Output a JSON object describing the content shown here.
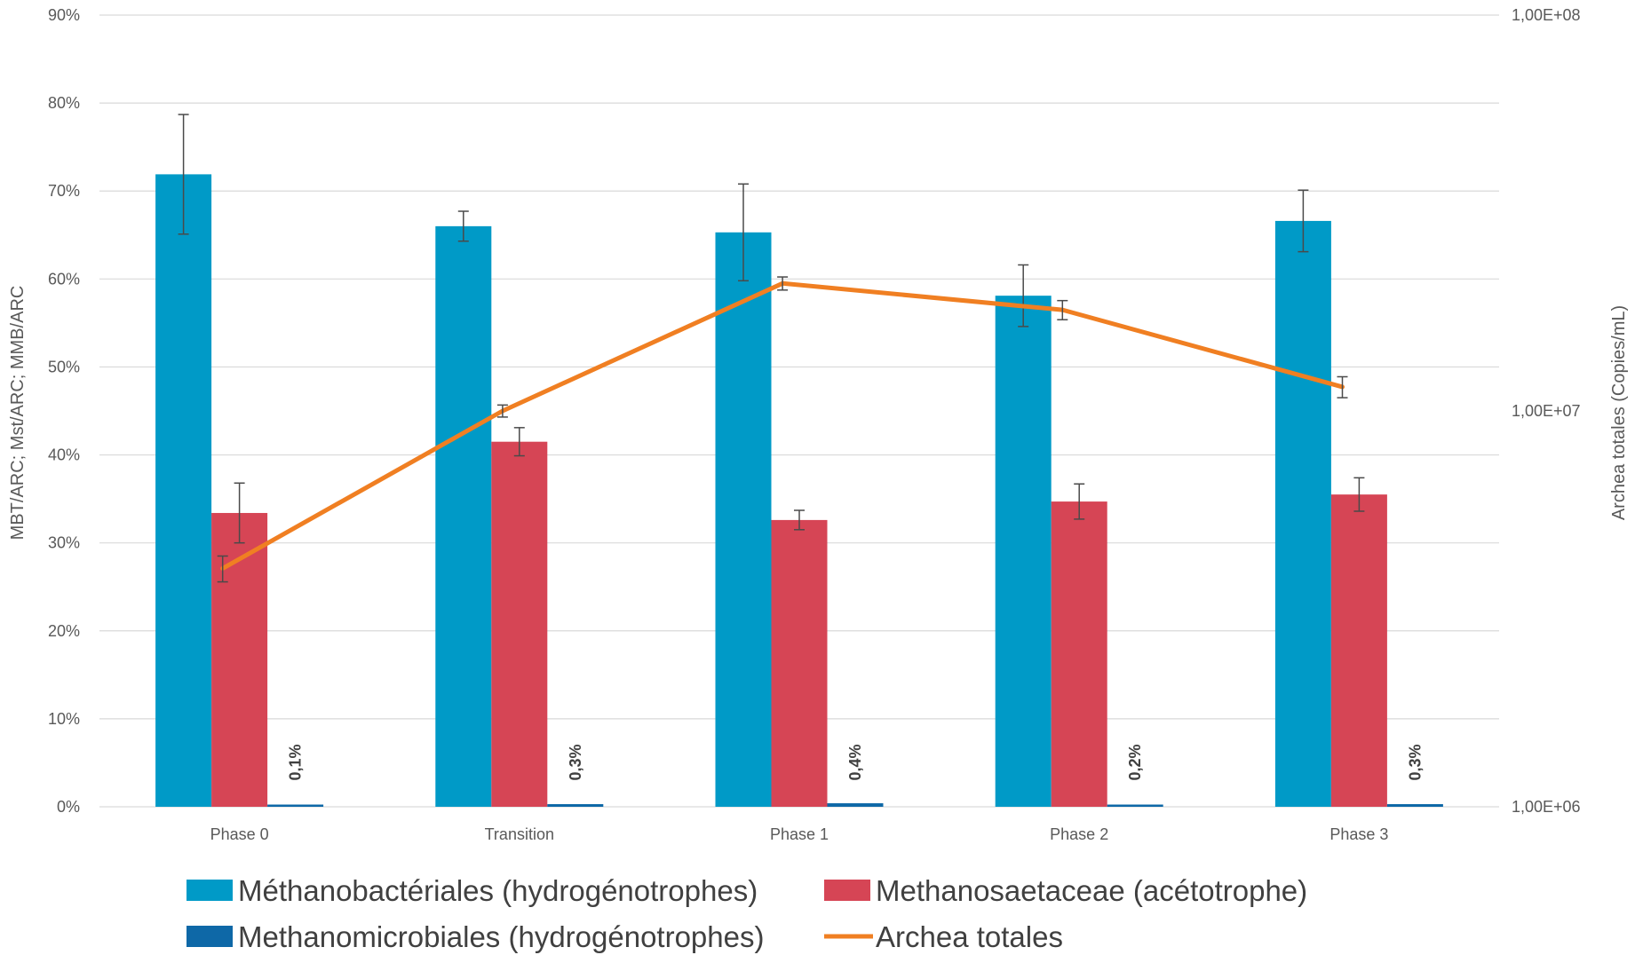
{
  "chart_data": {
    "type": "bar",
    "categories": [
      "Phase 0",
      "Transition",
      "Phase 1",
      "Phase 2",
      "Phase 3"
    ],
    "series": [
      {
        "name": "Méthanobactériales (hydrogénotrophes)",
        "type": "bar",
        "color": "#009AC7",
        "values": [
          0.719,
          0.66,
          0.653,
          0.581,
          0.666
        ],
        "error": [
          0.068,
          0.017,
          0.055,
          0.035,
          0.035
        ]
      },
      {
        "name": "Methanosaetaceae (acétotrophe)",
        "type": "bar",
        "color": "#D64555",
        "values": [
          0.334,
          0.415,
          0.326,
          0.347,
          0.355
        ],
        "error": [
          0.034,
          0.016,
          0.011,
          0.02,
          0.019
        ]
      },
      {
        "name": "Methanomicrobiales (hydrogénotrophes)",
        "type": "bar",
        "color": "#0E68A7",
        "values": [
          0.001,
          0.003,
          0.004,
          0.002,
          0.003
        ],
        "data_labels": [
          "0,1%",
          "0,3%",
          "0,4%",
          "0,2%",
          "0,3%"
        ]
      },
      {
        "name": "Archea totales",
        "type": "line",
        "axis": "right",
        "color": "#F07F22",
        "values": [
          4000000,
          10000000,
          21000000,
          18000000,
          11500000
        ],
        "error": [
          300000,
          350000,
          800000,
          1000000,
          700000
        ]
      }
    ],
    "ylabel": "MBT/ARC; Mst/ARC; MMB/ARC",
    "ylim": [
      0,
      0.9
    ],
    "yticks": [
      "0%",
      "10%",
      "20%",
      "30%",
      "40%",
      "50%",
      "60%",
      "70%",
      "80%",
      "90%"
    ],
    "y2label": "Archea totales (Copies/mL)",
    "y2lim": [
      1000000,
      100000000
    ],
    "y2scale": "log",
    "y2ticks": [
      "1,00E+06",
      "1,00E+07",
      "1,00E+08"
    ],
    "grid": true,
    "legend_position": "bottom"
  }
}
